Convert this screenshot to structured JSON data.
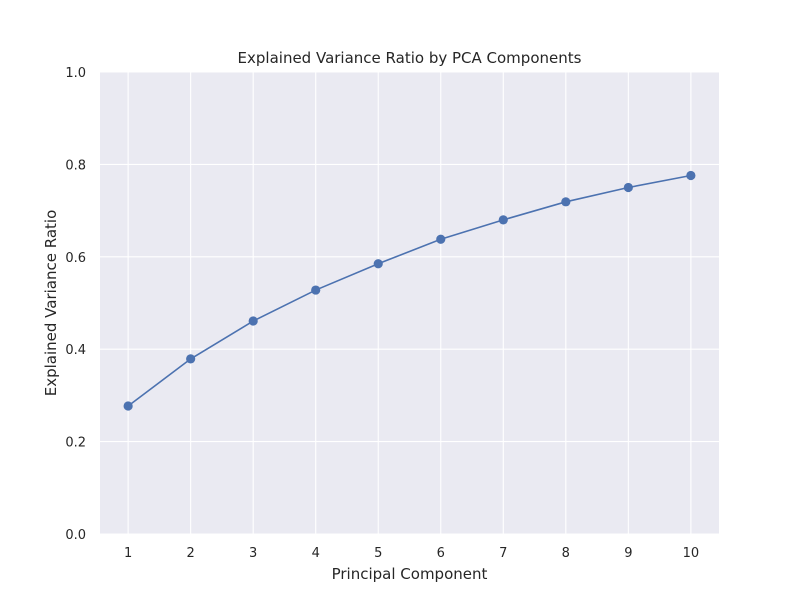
{
  "chart_data": {
    "type": "line",
    "title": "Explained Variance Ratio by PCA Components",
    "xlabel": "Principal Component",
    "ylabel": "Explained Variance Ratio",
    "x": [
      1,
      2,
      3,
      4,
      5,
      6,
      7,
      8,
      9,
      10
    ],
    "series": [
      {
        "values": [
          0.277,
          0.379,
          0.461,
          0.528,
          0.585,
          0.638,
          0.68,
          0.719,
          0.75,
          0.776
        ]
      }
    ],
    "xticks": [
      "1",
      "2",
      "3",
      "4",
      "5",
      "6",
      "7",
      "8",
      "9",
      "10"
    ],
    "yticks": [
      "0.0",
      "0.2",
      "0.4",
      "0.6",
      "0.8",
      "1.0"
    ],
    "xlim": [
      0.55,
      10.45
    ],
    "ylim": [
      0,
      1
    ],
    "grid": true,
    "marker": "circle",
    "colors": {
      "line": "#4c72b0",
      "plot_background": "#eaeaf2",
      "grid": "#ffffff",
      "text": "#262626"
    }
  }
}
